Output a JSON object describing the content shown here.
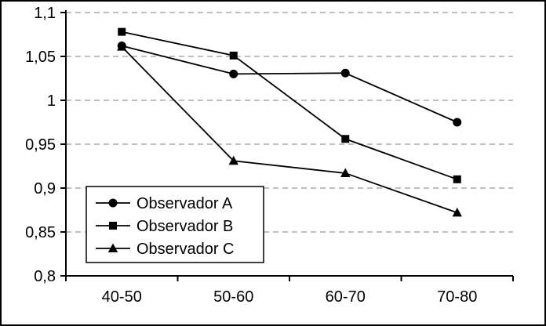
{
  "chart_data": {
    "type": "line",
    "title": "",
    "xlabel": "",
    "ylabel": "",
    "categories": [
      "40-50",
      "50-60",
      "60-70",
      "70-80"
    ],
    "series": [
      {
        "name": "Observador A",
        "marker": "circle",
        "values": [
          1.062,
          1.03,
          1.031,
          0.975
        ]
      },
      {
        "name": "Observador B",
        "marker": "square",
        "values": [
          1.078,
          1.051,
          0.956,
          0.91
        ]
      },
      {
        "name": "Observador C",
        "marker": "triangle",
        "values": [
          1.061,
          0.931,
          0.917,
          0.872
        ]
      }
    ],
    "ylim": [
      0.8,
      1.1
    ],
    "ytick_values": [
      0.8,
      0.85,
      0.9,
      0.95,
      1.0,
      1.05,
      1.1
    ],
    "ytick_labels": [
      "0,8",
      "0,85",
      "0,9",
      "0,95",
      "1",
      "1,05",
      "1,1"
    ],
    "grid": "dashed-horizontal",
    "legend_position": "inside-bottom-left",
    "line_color": "#000000",
    "grid_color": "#9a9a9a",
    "axis_color": "#000000",
    "background": "#ffffff"
  }
}
